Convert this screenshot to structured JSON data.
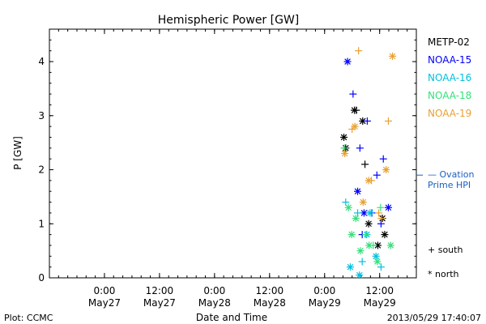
{
  "chart_data": {
    "type": "scatter",
    "title": "Hemispheric Power [GW]",
    "xlabel": "Date and Time",
    "ylabel": "P [GW]",
    "ylim": [
      0,
      4.6
    ],
    "xlim_hours": [
      -60,
      20
    ],
    "x_ticks": [
      {
        "h": -48,
        "time": "0:00",
        "date": "May27"
      },
      {
        "h": -36,
        "time": "12:00",
        "date": "May27"
      },
      {
        "h": -24,
        "time": "0:00",
        "date": "May28"
      },
      {
        "h": -12,
        "time": "12:00",
        "date": "May28"
      },
      {
        "h": 0,
        "time": "0:00",
        "date": "May29"
      },
      {
        "h": 12,
        "time": "12:00",
        "date": "May29"
      }
    ],
    "y_ticks": [
      0,
      1,
      2,
      3,
      4
    ],
    "series": [
      {
        "name": "METP-02",
        "color": "#000000",
        "points": [
          {
            "x": 4.2,
            "y": 2.6,
            "m": "north"
          },
          {
            "x": 4.6,
            "y": 2.4,
            "m": "north"
          },
          {
            "x": 6.5,
            "y": 3.1,
            "m": "north"
          },
          {
            "x": 6.9,
            "y": 3.1,
            "m": "south"
          },
          {
            "x": 8.3,
            "y": 2.9,
            "m": "north"
          },
          {
            "x": 8.8,
            "y": 2.1,
            "m": "south"
          },
          {
            "x": 9.6,
            "y": 1.0,
            "m": "north"
          },
          {
            "x": 11.6,
            "y": 0.6,
            "m": "north"
          },
          {
            "x": 12.6,
            "y": 1.1,
            "m": "north"
          },
          {
            "x": 13.1,
            "y": 0.8,
            "m": "north"
          }
        ]
      },
      {
        "name": "NOAA-15",
        "color": "#0000ff",
        "points": [
          {
            "x": 5.0,
            "y": 4.0,
            "m": "north"
          },
          {
            "x": 6.2,
            "y": 3.4,
            "m": "south"
          },
          {
            "x": 7.2,
            "y": 1.6,
            "m": "north"
          },
          {
            "x": 7.7,
            "y": 2.4,
            "m": "south"
          },
          {
            "x": 8.2,
            "y": 0.8,
            "m": "south"
          },
          {
            "x": 8.6,
            "y": 1.2,
            "m": "north"
          },
          {
            "x": 9.3,
            "y": 2.9,
            "m": "south"
          },
          {
            "x": 10.3,
            "y": 1.2,
            "m": "south"
          },
          {
            "x": 11.4,
            "y": 1.9,
            "m": "south"
          },
          {
            "x": 12.3,
            "y": 1.0,
            "m": "south"
          },
          {
            "x": 12.8,
            "y": 2.2,
            "m": "south"
          },
          {
            "x": 13.9,
            "y": 1.3,
            "m": "north"
          }
        ]
      },
      {
        "name": "NOAA-16",
        "color": "#00c0e0",
        "points": [
          {
            "x": 4.6,
            "y": 1.4,
            "m": "south"
          },
          {
            "x": 5.6,
            "y": 0.2,
            "m": "north"
          },
          {
            "x": 7.2,
            "y": 1.2,
            "m": "south"
          },
          {
            "x": 7.6,
            "y": 0.05,
            "m": "north"
          },
          {
            "x": 8.2,
            "y": 0.3,
            "m": "south"
          },
          {
            "x": 9.2,
            "y": 0.8,
            "m": "north"
          },
          {
            "x": 9.9,
            "y": 1.2,
            "m": "north"
          },
          {
            "x": 11.2,
            "y": 0.4,
            "m": "north"
          },
          {
            "x": 12.3,
            "y": 0.2,
            "m": "south"
          }
        ]
      },
      {
        "name": "NOAA-18",
        "color": "#33e07a",
        "points": [
          {
            "x": 4.3,
            "y": 2.4,
            "m": "south"
          },
          {
            "x": 5.2,
            "y": 1.3,
            "m": "north"
          },
          {
            "x": 5.9,
            "y": 0.8,
            "m": "north"
          },
          {
            "x": 6.8,
            "y": 1.1,
            "m": "north"
          },
          {
            "x": 7.8,
            "y": 0.5,
            "m": "north"
          },
          {
            "x": 9.0,
            "y": 0.8,
            "m": "south"
          },
          {
            "x": 9.7,
            "y": 0.6,
            "m": "north"
          },
          {
            "x": 10.6,
            "y": 0.6,
            "m": "south"
          },
          {
            "x": 11.5,
            "y": 0.3,
            "m": "north"
          },
          {
            "x": 12.2,
            "y": 1.3,
            "m": "south"
          },
          {
            "x": 14.4,
            "y": 0.6,
            "m": "north"
          }
        ]
      },
      {
        "name": "NOAA-19",
        "color": "#e8a030",
        "points": [
          {
            "x": 4.4,
            "y": 2.3,
            "m": "north"
          },
          {
            "x": 6.0,
            "y": 2.75,
            "m": "south"
          },
          {
            "x": 6.6,
            "y": 2.8,
            "m": "north"
          },
          {
            "x": 7.4,
            "y": 4.2,
            "m": "south"
          },
          {
            "x": 8.4,
            "y": 1.4,
            "m": "north"
          },
          {
            "x": 9.6,
            "y": 1.8,
            "m": "north"
          },
          {
            "x": 10.2,
            "y": 1.8,
            "m": "south"
          },
          {
            "x": 11.8,
            "y": 1.2,
            "m": "south"
          },
          {
            "x": 12.4,
            "y": 1.1,
            "m": "south"
          },
          {
            "x": 13.4,
            "y": 2.0,
            "m": "north"
          },
          {
            "x": 13.9,
            "y": 2.9,
            "m": "south"
          },
          {
            "x": 14.8,
            "y": 4.1,
            "m": "north"
          }
        ]
      }
    ],
    "reference": {
      "label_line1": "— Ovation",
      "label_line2": "Prime HPI",
      "y": 1.9,
      "color": "#1a5fbf"
    },
    "marker_legend": {
      "south": "+ south",
      "north": "* north"
    }
  },
  "footer": {
    "left": "Plot: CCMC",
    "right": "2013/05/29 17:40:07"
  }
}
